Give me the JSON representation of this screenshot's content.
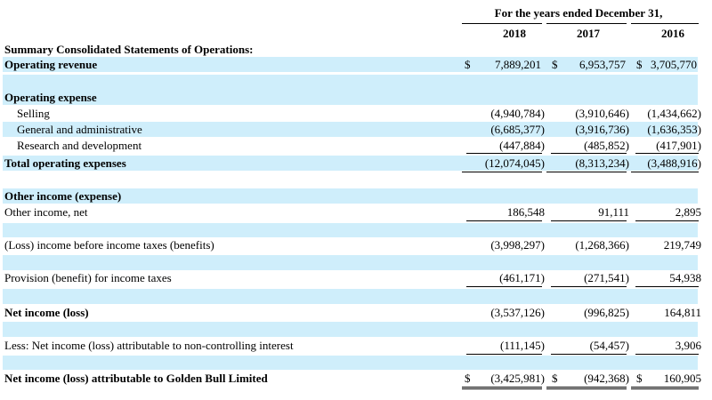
{
  "header": {
    "title": "For the years ended December 31,",
    "years": [
      "2018",
      "2017",
      "2016"
    ]
  },
  "rows": [
    {
      "id": "summary",
      "label": "Summary Consolidated Statements of Operations:",
      "bold": true
    },
    {
      "id": "op-revenue",
      "label": "Operating revenue",
      "bold": true,
      "currency": "$",
      "values": [
        "7,889,201",
        "6,953,757",
        "3,705,770"
      ]
    },
    {
      "id": "op-expense",
      "label": "Operating expense",
      "bold": true
    },
    {
      "id": "selling",
      "label": "Selling",
      "indent": true,
      "values": [
        "(4,940,784)",
        "(3,910,646)",
        "(1,434,662)"
      ]
    },
    {
      "id": "ga",
      "label": "General and administrative",
      "indent": true,
      "values": [
        "(6,685,377)",
        "(3,916,736)",
        "(1,636,353)"
      ]
    },
    {
      "id": "rd",
      "label": "Research and development",
      "indent": true,
      "values": [
        "(447,884)",
        "(485,852)",
        "(417,901)"
      ]
    },
    {
      "id": "total-op",
      "label": "Total operating expenses",
      "bold": true,
      "values": [
        "(12,074,045)",
        "(8,313,234)",
        "(3,488,916)"
      ]
    },
    {
      "id": "other-header",
      "label": "Other income (expense)",
      "bold": true
    },
    {
      "id": "other-net",
      "label": "Other income, net",
      "values": [
        "186,548",
        "91,111",
        "2,895"
      ]
    },
    {
      "id": "pretax",
      "label": "(Loss) income before income taxes (benefits)",
      "values": [
        "(3,998,297)",
        "(1,268,366)",
        "219,749"
      ]
    },
    {
      "id": "provision",
      "label": "Provision (benefit) for income taxes",
      "values": [
        "(461,171)",
        "(271,541)",
        "54,938"
      ]
    },
    {
      "id": "net-income",
      "label": "Net income (loss)",
      "bold": true,
      "values": [
        "(3,537,126)",
        "(996,825)",
        "164,811"
      ]
    },
    {
      "id": "nci",
      "label": "Less: Net income (loss) attributable to non-controlling interest",
      "values": [
        "(111,145)",
        "(54,457)",
        "3,906"
      ]
    },
    {
      "id": "net-golden",
      "label": "Net  income (loss) attributable to Golden Bull Limited",
      "bold": true,
      "currency": "$",
      "values": [
        "(3,425,981)",
        "(942,368)",
        "160,905"
      ]
    }
  ]
}
